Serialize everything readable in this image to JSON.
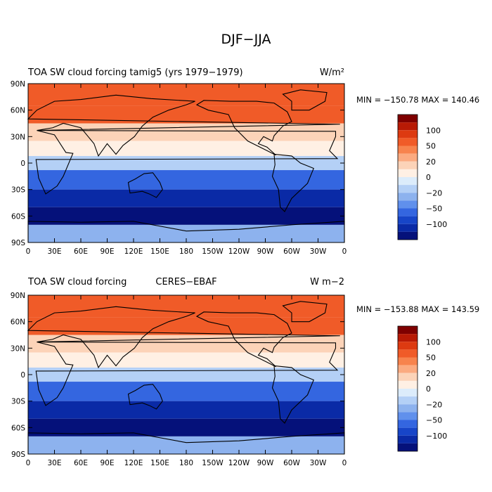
{
  "figure_title": "DJF−JJA",
  "panels": [
    {
      "id": "model",
      "left_title": "TOA SW cloud forcing",
      "center_title": "tamig5 (yrs 1979−1979)",
      "units": "W/m²",
      "stats": "MIN = −150.78  MAX = 140.46"
    },
    {
      "id": "obs",
      "left_title": "TOA SW cloud forcing",
      "center_title": "CERES−EBAF",
      "units": "W m−2",
      "stats": "MIN = −153.88  MAX = 143.59"
    }
  ],
  "lat_ticks": [
    "90N",
    "60N",
    "30N",
    "0",
    "30S",
    "60S",
    "90S"
  ],
  "lon_ticks": [
    "0",
    "30E",
    "60E",
    "90E",
    "120E",
    "150E",
    "180",
    "150W",
    "120W",
    "90W",
    "60W",
    "30W",
    "0"
  ],
  "colorbar": {
    "colors": [
      "#7f0000",
      "#b81a05",
      "#dd3a11",
      "#f05b28",
      "#f7834d",
      "#fbaa80",
      "#fcd3b8",
      "#fff0e4",
      "#dcecfb",
      "#b4d0f6",
      "#8db2ee",
      "#6090ec",
      "#3466e0",
      "#1745c8",
      "#0a2aa6",
      "#05117a"
    ],
    "labels": [
      "100",
      "50",
      "20",
      "0",
      "−20",
      "−50",
      "−100"
    ]
  },
  "chart_data": {
    "type": "heatmap",
    "title": "DJF−JJA",
    "variable": "TOA SW cloud forcing",
    "color_levels": [
      100,
      50,
      20,
      0,
      -20,
      -50,
      -100
    ],
    "x_range": [
      0,
      360
    ],
    "y_range": [
      -90,
      90
    ],
    "lat_bands": [
      {
        "lat": 75,
        "value": 70
      },
      {
        "lat": 55,
        "value": 65
      },
      {
        "lat": 35,
        "value": 30
      },
      {
        "lat": 15,
        "value": 15
      },
      {
        "lat": 0,
        "value": -5
      },
      {
        "lat": -20,
        "value": -40
      },
      {
        "lat": -40,
        "value": -75
      },
      {
        "lat": -60,
        "value": -105
      },
      {
        "lat": -78,
        "value": -15
      }
    ],
    "panels": [
      {
        "name": "tamig5 (yrs 1979−1979)",
        "min": -150.78,
        "max": 140.46
      },
      {
        "name": "CERES−EBAF",
        "min": -153.88,
        "max": 143.59
      }
    ]
  }
}
